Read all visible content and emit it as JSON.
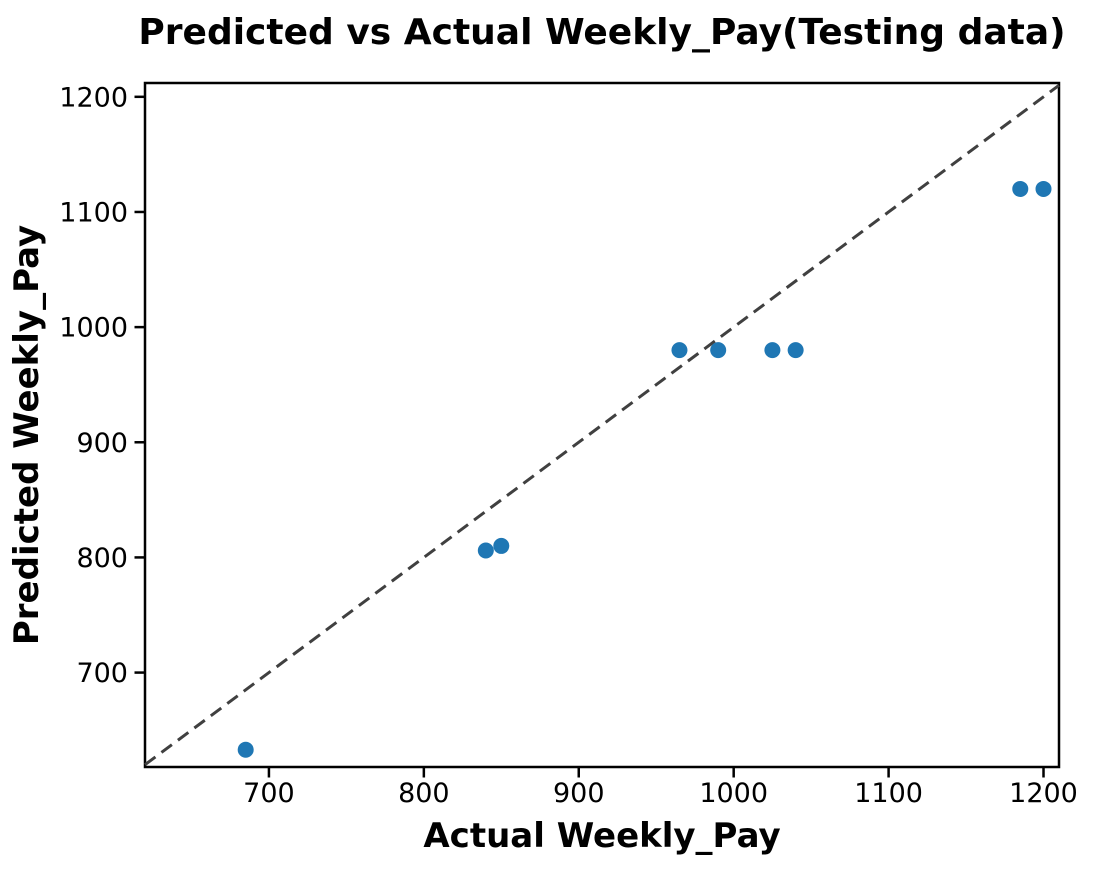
{
  "chart_data": {
    "type": "scatter",
    "title": "Predicted vs Actual Weekly_Pay(Testing data)",
    "xlabel": "Actual Weekly_Pay",
    "ylabel": "Predicted Weekly_Pay",
    "xlim": [
      620,
      1210
    ],
    "ylim": [
      618,
      1212
    ],
    "xticks": [
      700,
      800,
      900,
      1000,
      1100,
      1200
    ],
    "yticks": [
      700,
      800,
      900,
      1000,
      1100,
      1200
    ],
    "grid": false,
    "legend": "none",
    "series": [
      {
        "name": "test-predictions",
        "type": "scatter",
        "marker": "circle",
        "color": "#1f77b4",
        "x": [
          685,
          840,
          850,
          965,
          990,
          1025,
          1040,
          1185,
          1200
        ],
        "y": [
          633,
          806,
          810,
          980,
          980,
          980,
          980,
          1120,
          1120
        ]
      },
      {
        "name": "identity-line",
        "type": "line",
        "style": "dashed",
        "color": "#404040",
        "x": [
          620,
          1210
        ],
        "y": [
          620,
          1210
        ]
      }
    ],
    "colors": {
      "marker": "#1f77b4",
      "dashed_line": "#404040",
      "axis": "#000000",
      "background": "#ffffff"
    }
  }
}
